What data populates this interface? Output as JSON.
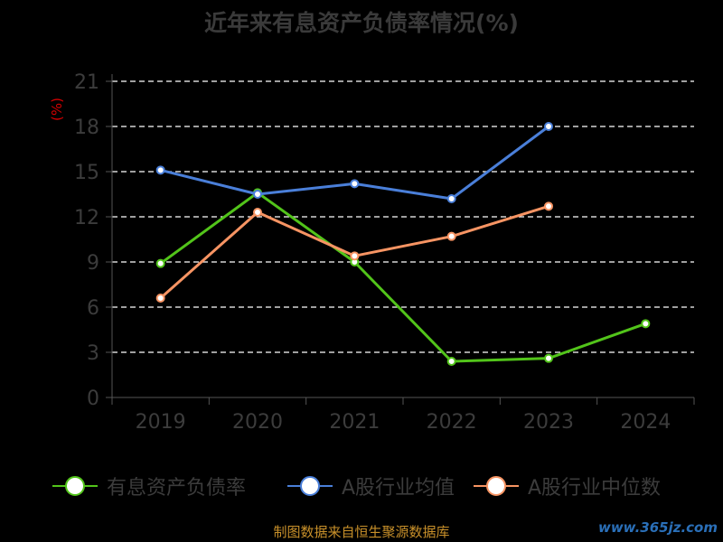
{
  "chart_data": {
    "type": "line",
    "title": "近年来有息资产负债率情况(%)",
    "ylabel": "(%)",
    "xlabel": "",
    "categories": [
      "2019",
      "2020",
      "2021",
      "2022",
      "2023",
      "2024"
    ],
    "ylim": [
      0,
      21
    ],
    "yticks": [
      0,
      3,
      6,
      9,
      12,
      15,
      18,
      21
    ],
    "grid": true,
    "legend_position": "bottom",
    "series": [
      {
        "name": "有息资产负债率",
        "color": "#52c41a",
        "values": [
          8.9,
          13.6,
          9.0,
          2.4,
          2.6,
          4.9
        ]
      },
      {
        "name": "A股行业均值",
        "color": "#4a7fd9",
        "values": [
          15.1,
          13.5,
          14.2,
          13.2,
          18.0,
          null
        ]
      },
      {
        "name": "A股行业中位数",
        "color": "#f79463",
        "values": [
          6.6,
          12.3,
          9.4,
          10.7,
          12.7,
          null
        ]
      }
    ]
  },
  "footer": {
    "source": "制图数据来自恒生聚源数据库",
    "watermark": "www.365jz.com"
  }
}
